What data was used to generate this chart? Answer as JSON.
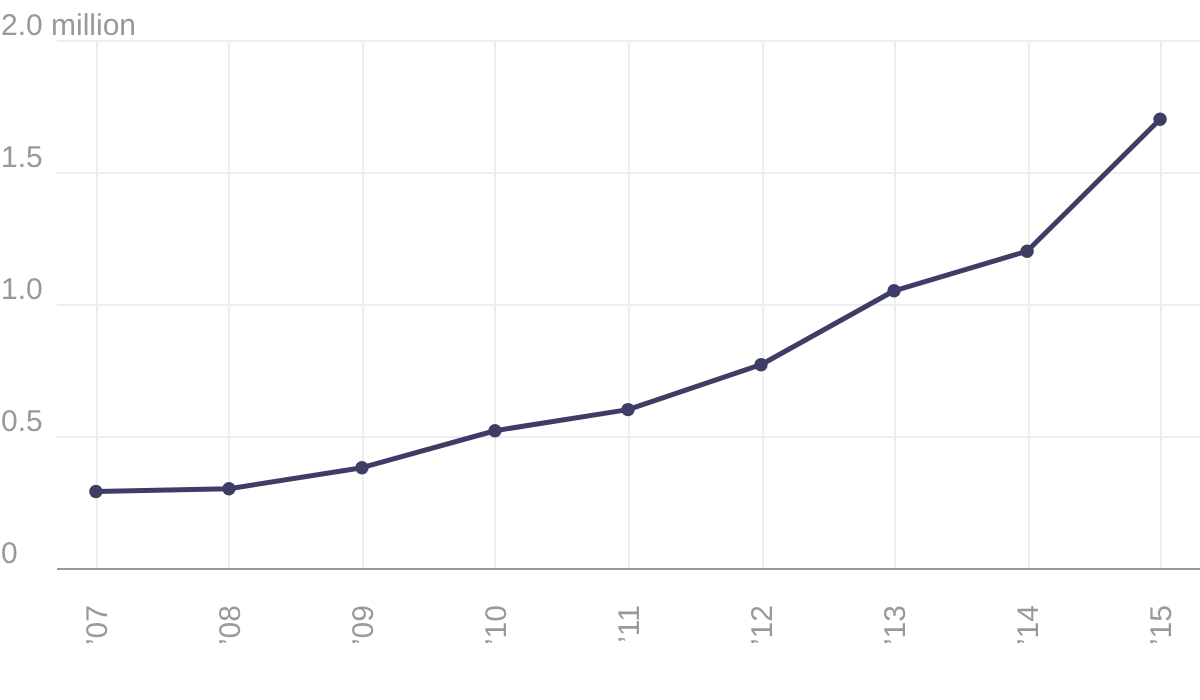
{
  "chart_data": {
    "type": "line",
    "categories": [
      "’07",
      "’08",
      "’09",
      "’10",
      "’11",
      "’12",
      "’13",
      "’14",
      "’15"
    ],
    "series": [
      {
        "color": "#3d3d66",
        "values": [
          0.29,
          0.3,
          0.38,
          0.52,
          0.6,
          0.77,
          1.05,
          1.2,
          1.7
        ]
      }
    ],
    "ylim": [
      0,
      2
    ],
    "yticks": [
      0,
      0.5,
      {
        "value": 1,
        "label": "1.0"
      },
      1.5,
      {
        "value": 2,
        "label": "2.0 million"
      }
    ],
    "grid": true,
    "marker": "circle",
    "line_style": "solid"
  }
}
